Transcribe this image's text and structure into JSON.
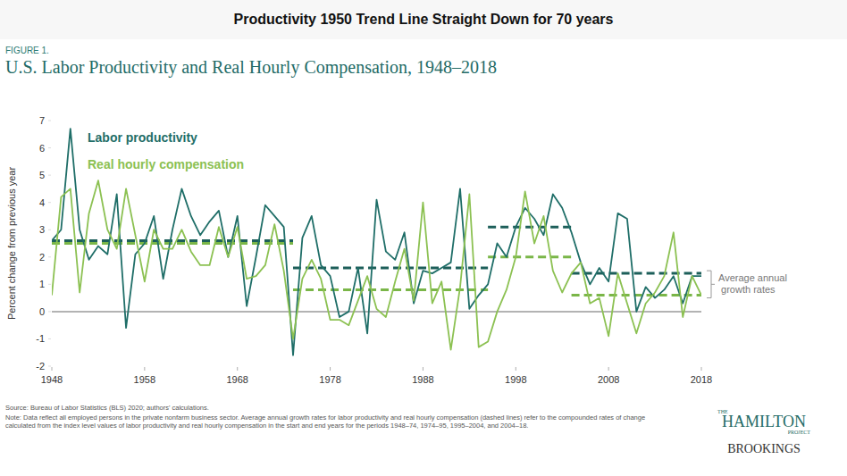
{
  "chart_data": {
    "type": "line",
    "header": "Productivity 1950 Trend Line Straight Down for 70 years",
    "figure_label": "FIGURE 1.",
    "title": "U.S. Labor Productivity and Real Hourly Compensation, 1948–2018",
    "ylabel": "Percent change from previous year",
    "x": [
      1948,
      1949,
      1950,
      1951,
      1952,
      1953,
      1954,
      1955,
      1956,
      1957,
      1958,
      1959,
      1960,
      1961,
      1962,
      1963,
      1964,
      1965,
      1966,
      1967,
      1968,
      1969,
      1970,
      1971,
      1972,
      1973,
      1974,
      1975,
      1976,
      1977,
      1978,
      1979,
      1980,
      1981,
      1982,
      1983,
      1984,
      1985,
      1986,
      1987,
      1988,
      1989,
      1990,
      1991,
      1992,
      1993,
      1994,
      1995,
      1996,
      1997,
      1998,
      1999,
      2000,
      2001,
      2002,
      2003,
      2004,
      2005,
      2006,
      2007,
      2008,
      2009,
      2010,
      2011,
      2012,
      2013,
      2014,
      2015,
      2016,
      2017,
      2018
    ],
    "series": [
      {
        "name": "Labor productivity",
        "color": "#1f6e68",
        "values": [
          2.6,
          3.0,
          6.7,
          3.0,
          1.9,
          2.4,
          2.1,
          4.3,
          -0.6,
          2.1,
          2.5,
          3.5,
          1.2,
          3.0,
          4.5,
          3.5,
          2.8,
          3.3,
          3.7,
          2.0,
          3.5,
          0.2,
          2.0,
          3.9,
          3.5,
          3.1,
          -1.6,
          2.7,
          3.5,
          1.7,
          1.3,
          -0.2,
          0.0,
          1.6,
          -0.8,
          4.1,
          2.2,
          1.9,
          2.9,
          0.3,
          1.5,
          1.4,
          1.6,
          1.8,
          4.5,
          0.1,
          0.6,
          1.0,
          2.5,
          2.0,
          3.1,
          3.8,
          3.4,
          2.8,
          4.3,
          3.8,
          2.9,
          1.8,
          1.0,
          1.6,
          1.1,
          3.6,
          3.4,
          0.0,
          0.9,
          0.5,
          0.8,
          1.3,
          0.3,
          1.3,
          1.3
        ]
      },
      {
        "name": "Real hourly compensation",
        "color": "#8cc152",
        "values": [
          0.6,
          4.2,
          4.5,
          0.7,
          3.6,
          4.8,
          3.0,
          2.3,
          4.5,
          2.8,
          1.1,
          3.0,
          2.3,
          2.3,
          3.0,
          2.2,
          1.7,
          1.7,
          3.1,
          2.0,
          3.1,
          1.2,
          1.3,
          1.7,
          3.2,
          1.5,
          -1.0,
          1.2,
          1.9,
          1.2,
          -0.3,
          -0.3,
          -0.5,
          0.4,
          1.3,
          0.1,
          -0.2,
          1.1,
          2.3,
          0.4,
          4.0,
          0.3,
          1.1,
          -1.4,
          0.9,
          4.3,
          -1.3,
          -1.1,
          0.0,
          0.8,
          2.0,
          4.4,
          2.5,
          3.5,
          1.5,
          0.7,
          1.4,
          1.8,
          0.3,
          0.5,
          -0.9,
          1.4,
          0.3,
          -0.8,
          0.3,
          0.7,
          1.3,
          2.9,
          -0.2,
          1.3,
          0.6
        ]
      },
      {
        "color": "#1d5f5a",
        "line_style": "dashed",
        "x": [
          1948,
          1974
        ],
        "values": [
          2.6,
          2.6
        ]
      },
      {
        "color": "#7ab648",
        "line_style": "dashed",
        "x": [
          1948,
          1974
        ],
        "values": [
          2.5,
          2.5
        ]
      },
      {
        "color": "#1d5f5a",
        "line_style": "dashed",
        "x": [
          1974,
          1995
        ],
        "values": [
          1.6,
          1.6
        ]
      },
      {
        "color": "#7ab648",
        "line_style": "dashed",
        "x": [
          1974,
          1995
        ],
        "values": [
          0.8,
          0.8
        ]
      },
      {
        "color": "#1d5f5a",
        "line_style": "dashed",
        "x": [
          1995,
          2004
        ],
        "values": [
          3.1,
          3.1
        ]
      },
      {
        "color": "#7ab648",
        "line_style": "dashed",
        "x": [
          1995,
          2004
        ],
        "values": [
          2.0,
          2.0
        ]
      },
      {
        "color": "#1d5f5a",
        "line_style": "dashed",
        "x": [
          2004,
          2018
        ],
        "values": [
          1.4,
          1.4
        ]
      },
      {
        "color": "#7ab648",
        "line_style": "dashed",
        "x": [
          2004,
          2018
        ],
        "values": [
          0.6,
          0.6
        ]
      }
    ],
    "xlim": [
      1948,
      2018
    ],
    "xticks": [
      1948,
      1958,
      1968,
      1978,
      1988,
      1998,
      2008,
      2018
    ],
    "ylim": [
      -2,
      7
    ],
    "yticks": [
      -2,
      -1,
      0,
      1,
      2,
      3,
      4,
      5,
      6,
      7
    ],
    "grid": false,
    "legend": "upper left",
    "annotations": [
      "Average annual growth rates"
    ],
    "source": "Source: Bureau of Labor Statistics (BLS) 2020; authors' calculations.",
    "note": "Note: Data reflect all employed persons in the private nonfarm business sector. Average annual growth rates for labor productivity and real hourly compensation (dashed lines) refer to the compounded rates of change calculated from the index level values of labor productivity and real hourly compensation in the start and end years for the periods 1948–74, 1974–95, 1995–2004, and 2004–18.",
    "logo_top": "THE",
    "logo_main": "HAMILTON",
    "logo_sub": "PROJECT",
    "logo_org": "BROOKINGS"
  }
}
